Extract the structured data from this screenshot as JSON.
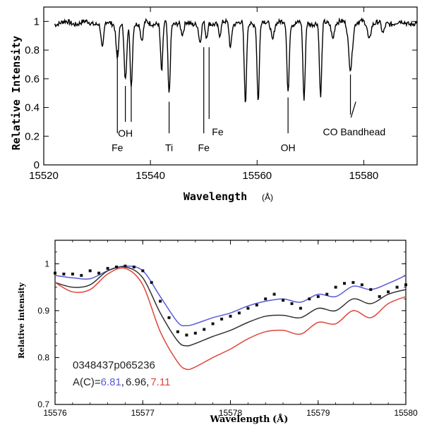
{
  "chart_data": [
    {
      "type": "line",
      "title": "",
      "xlabel": "Wavelength",
      "xunit": "(Å)",
      "ylabel": "Relative Intensity",
      "xlim": [
        15520,
        15590
      ],
      "ylim": [
        0,
        1.1
      ],
      "xticks": [
        15520,
        15540,
        15560,
        15580
      ],
      "yticks": [
        0,
        0.2,
        0.4,
        0.6,
        0.8,
        1
      ],
      "ytick_labels": [
        "0",
        "0.2",
        "0.4",
        "0.6",
        "0.8",
        "1"
      ],
      "continuum": 0.99,
      "lines": [
        {
          "x": 15531.0,
          "depth": 0.19,
          "w": 0.35
        },
        {
          "x": 15533.8,
          "depth": 0.24,
          "w": 0.35
        },
        {
          "x": 15535.3,
          "depth": 0.41,
          "w": 0.35
        },
        {
          "x": 15536.4,
          "depth": 0.44,
          "w": 0.3
        },
        {
          "x": 15538.4,
          "depth": 0.13,
          "w": 0.35
        },
        {
          "x": 15542.1,
          "depth": 0.35,
          "w": 0.3
        },
        {
          "x": 15543.5,
          "depth": 0.5,
          "w": 0.3
        },
        {
          "x": 15546.0,
          "depth": 0.09,
          "w": 0.4
        },
        {
          "x": 15549.3,
          "depth": 0.14,
          "w": 0.35
        },
        {
          "x": 15550.5,
          "depth": 0.11,
          "w": 0.3
        },
        {
          "x": 15553.0,
          "depth": 0.09,
          "w": 0.35
        },
        {
          "x": 15555.0,
          "depth": 0.17,
          "w": 0.3
        },
        {
          "x": 15557.8,
          "depth": 0.57,
          "w": 0.3
        },
        {
          "x": 15560.2,
          "depth": 0.55,
          "w": 0.3
        },
        {
          "x": 15562.9,
          "depth": 0.11,
          "w": 0.35
        },
        {
          "x": 15565.8,
          "depth": 0.49,
          "w": 0.3
        },
        {
          "x": 15568.8,
          "depth": 0.55,
          "w": 0.3
        },
        {
          "x": 15571.9,
          "depth": 0.53,
          "w": 0.3
        },
        {
          "x": 15574.2,
          "depth": 0.1,
          "w": 0.35
        },
        {
          "x": 15577.5,
          "depth": 0.31,
          "w": 0.5
        },
        {
          "x": 15581.0,
          "depth": 0.11,
          "w": 0.4
        },
        {
          "x": 15583.6,
          "depth": 0.08,
          "w": 0.4
        }
      ],
      "annotations": [
        {
          "text": "Fe",
          "x": 15533.8,
          "y_top": 0.8,
          "y_bot": 0.22,
          "label_y": 0.12
        },
        {
          "text": "OH",
          "x": 15535.3,
          "y_top": 0.55,
          "y_bot": 0.3,
          "label_y": 0.22
        },
        {
          "text": "",
          "x": 15536.4,
          "y_top": 0.55,
          "y_bot": 0.3,
          "label_y": 0.22
        },
        {
          "text": "Ti",
          "x": 15543.5,
          "y_top": 0.44,
          "y_bot": 0.22,
          "label_y": 0.12
        },
        {
          "text": "Fe",
          "x": 15550.0,
          "y_top": 0.82,
          "y_bot": 0.22,
          "label_y": 0.12
        },
        {
          "text": "Fe",
          "x": 15551.0,
          "y_top": 0.82,
          "y_bot": 0.32,
          "label_y": 0.23
        },
        {
          "text": "OH",
          "x": 15565.8,
          "y_top": 0.47,
          "y_bot": 0.22,
          "label_y": 0.12
        },
        {
          "text": "",
          "x": 15577.5,
          "y_top": 0.63,
          "y_bot": 0.35,
          "label_y": 0.35
        },
        {
          "text": "CO Bandhead",
          "x": 15579.6,
          "y_top": 0.44,
          "y_bot": 0.33,
          "label_y": 0.23
        }
      ]
    },
    {
      "type": "line",
      "title": "",
      "xlabel": "Wavelength",
      "xunit": "(Å)",
      "ylabel": "Relative intensity",
      "xlim": [
        15576,
        15580
      ],
      "ylim": [
        0.7,
        1.05
      ],
      "xticks": [
        15576,
        15577,
        15578,
        15579,
        15580
      ],
      "yticks": [
        0.7,
        0.8,
        0.9,
        1
      ],
      "ytick_labels": [
        "0.7",
        "0.8",
        "0.9",
        "1"
      ],
      "star_id": "0348437p065236",
      "abundance_label": "A(C)=",
      "abundances": [
        "6.81",
        "6.96",
        "7.11"
      ],
      "separator": ",",
      "colors": {
        "blue": "#5a5ad8",
        "black": "#333333",
        "red": "#e0443a",
        "obs": "#111111"
      },
      "series": [
        {
          "name": "",
          "color": "#5a5ad8",
          "x": [
            15576,
            15576.2,
            15576.4,
            15576.6,
            15576.8,
            15577,
            15577.2,
            15577.4,
            15577.5,
            15577.6,
            15577.8,
            15578,
            15578.2,
            15578.4,
            15578.6,
            15578.8,
            15579,
            15579.2,
            15579.4,
            15579.6,
            15579.8,
            15580
          ],
          "y": [
            0.975,
            0.97,
            0.968,
            0.985,
            0.995,
            0.985,
            0.93,
            0.875,
            0.868,
            0.872,
            0.885,
            0.895,
            0.91,
            0.92,
            0.925,
            0.918,
            0.935,
            0.93,
            0.952,
            0.945,
            0.958,
            0.975
          ]
        },
        {
          "name": "",
          "color": "#333333",
          "x": [
            15576,
            15576.2,
            15576.4,
            15576.6,
            15576.8,
            15577,
            15577.2,
            15577.4,
            15577.5,
            15577.6,
            15577.8,
            15578,
            15578.2,
            15578.4,
            15578.6,
            15578.8,
            15579,
            15579.2,
            15579.4,
            15579.6,
            15579.8,
            15580
          ],
          "y": [
            0.96,
            0.95,
            0.955,
            0.985,
            0.993,
            0.97,
            0.895,
            0.835,
            0.825,
            0.83,
            0.845,
            0.858,
            0.875,
            0.888,
            0.89,
            0.885,
            0.905,
            0.9,
            0.925,
            0.915,
            0.935,
            0.945
          ]
        },
        {
          "name": "",
          "color": "#e0443a",
          "x": [
            15576,
            15576.2,
            15576.4,
            15576.6,
            15576.8,
            15577,
            15577.2,
            15577.4,
            15577.5,
            15577.6,
            15577.8,
            15578,
            15578.2,
            15578.4,
            15578.6,
            15578.8,
            15579,
            15579.2,
            15579.4,
            15579.6,
            15579.8,
            15580
          ],
          "y": [
            0.96,
            0.94,
            0.945,
            0.978,
            0.99,
            0.955,
            0.855,
            0.79,
            0.775,
            0.78,
            0.8,
            0.818,
            0.84,
            0.855,
            0.858,
            0.85,
            0.875,
            0.872,
            0.9,
            0.885,
            0.915,
            0.93
          ]
        },
        {
          "name": "",
          "color": "#111111",
          "kind": "points",
          "x": [
            15576,
            15576.1,
            15576.2,
            15576.3,
            15576.4,
            15576.5,
            15576.6,
            15576.7,
            15576.8,
            15576.9,
            15577,
            15577.1,
            15577.2,
            15577.3,
            15577.4,
            15577.5,
            15577.6,
            15577.7,
            15577.8,
            15577.9,
            15578,
            15578.1,
            15578.2,
            15578.3,
            15578.4,
            15578.5,
            15578.6,
            15578.7,
            15578.8,
            15578.9,
            15579,
            15579.1,
            15579.2,
            15579.3,
            15579.4,
            15579.5,
            15579.6,
            15579.7,
            15579.8,
            15579.9,
            15580
          ],
          "y": [
            0.98,
            0.978,
            0.978,
            0.975,
            0.985,
            0.98,
            0.99,
            0.993,
            0.995,
            0.993,
            0.985,
            0.96,
            0.92,
            0.885,
            0.855,
            0.848,
            0.852,
            0.86,
            0.872,
            0.882,
            0.888,
            0.895,
            0.905,
            0.912,
            0.925,
            0.935,
            0.922,
            0.915,
            0.905,
            0.925,
            0.93,
            0.935,
            0.95,
            0.958,
            0.96,
            0.955,
            0.945,
            0.93,
            0.94,
            0.95,
            0.955
          ]
        }
      ]
    }
  ]
}
